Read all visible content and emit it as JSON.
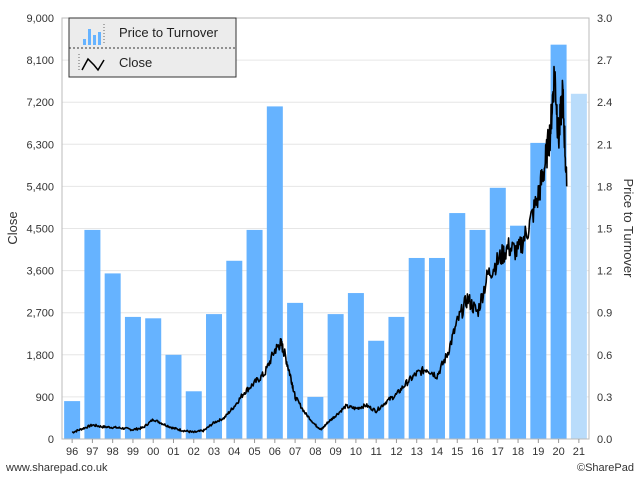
{
  "chart_data": {
    "type": "bar",
    "categories": [
      "96",
      "97",
      "98",
      "99",
      "00",
      "01",
      "02",
      "03",
      "04",
      "05",
      "06",
      "07",
      "08",
      "09",
      "10",
      "11",
      "12",
      "13",
      "14",
      "15",
      "16",
      "17",
      "18",
      "19",
      "20",
      "21"
    ],
    "series": [
      {
        "name": "Price to Turnover",
        "type": "bar",
        "axis": "right",
        "values": [
          0.27,
          1.49,
          1.18,
          0.87,
          0.86,
          0.6,
          0.34,
          0.89,
          1.27,
          1.49,
          2.37,
          0.97,
          0.3,
          0.89,
          1.04,
          0.7,
          0.87,
          1.29,
          1.29,
          1.61,
          1.49,
          1.79,
          1.52,
          2.11,
          2.81,
          2.46
        ],
        "highlight_last": true
      },
      {
        "name": "Close",
        "type": "line",
        "axis": "left",
        "x": [
          1996.0,
          1996.5,
          1997.0,
          1997.5,
          1998.0,
          1998.5,
          1999.0,
          1999.5,
          2000.0,
          2000.5,
          2001.0,
          2001.5,
          2002.0,
          2002.5,
          2003.0,
          2003.5,
          2004.0,
          2004.5,
          2005.0,
          2005.5,
          2006.0,
          2006.3,
          2006.5,
          2006.8,
          2007.0,
          2007.5,
          2008.0,
          2008.3,
          2008.6,
          2009.0,
          2009.5,
          2010.0,
          2010.5,
          2011.0,
          2011.5,
          2012.0,
          2012.5,
          2013.0,
          2013.5,
          2014.0,
          2014.5,
          2015.0,
          2015.5,
          2016.0,
          2016.5,
          2017.0,
          2017.5,
          2018.0,
          2018.5,
          2019.0,
          2019.3,
          2019.6,
          2019.8,
          2020.0,
          2020.2,
          2020.4
        ],
        "values": [
          140,
          220,
          300,
          260,
          250,
          230,
          200,
          240,
          420,
          320,
          230,
          180,
          140,
          180,
          350,
          450,
          700,
          1000,
          1200,
          1400,
          1900,
          2050,
          1800,
          1300,
          900,
          550,
          300,
          200,
          350,
          500,
          700,
          650,
          720,
          600,
          800,
          950,
          1200,
          1400,
          1500,
          1350,
          1800,
          2500,
          3000,
          2700,
          3500,
          3800,
          4100,
          4000,
          4500,
          5200,
          5800,
          6600,
          7900,
          6400,
          7400,
          5400
        ]
      }
    ],
    "y_left": {
      "label": "Close",
      "min": 0,
      "max": 9000,
      "ticks": [
        "0",
        "900",
        "1,800",
        "2,700",
        "3,600",
        "4,500",
        "5,400",
        "6,300",
        "7,200",
        "8,100",
        "9,000"
      ]
    },
    "y_right": {
      "label": "Price to Turnover",
      "min": 0,
      "max": 3.0,
      "ticks": [
        "0.0",
        "0.3",
        "0.6",
        "0.9",
        "1.2",
        "1.5",
        "1.8",
        "2.1",
        "2.4",
        "2.7",
        "3.0"
      ]
    },
    "grid": true,
    "legend": {
      "placement": "top-left",
      "items": [
        "Price to Turnover",
        "Close"
      ]
    },
    "colors": {
      "bar": "#66b3ff",
      "bar_latest": "#b9dcfb",
      "line": "#000000",
      "grid": "#e6e6e6"
    }
  },
  "footer": {
    "left": "www.sharepad.co.uk",
    "right": "©SharePad"
  }
}
